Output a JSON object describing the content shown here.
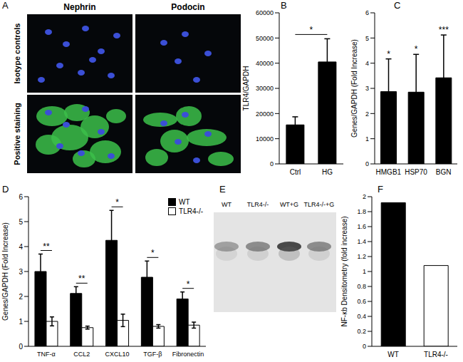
{
  "chart_data": [
    {
      "panel": "B",
      "type": "bar",
      "categories": [
        "Ctrl",
        "HG"
      ],
      "values": [
        15500,
        40500
      ],
      "errors": [
        3200,
        9200
      ],
      "color": "#000000",
      "ylabel": "TLR4/GAPDH",
      "ylim": [
        0,
        60000
      ],
      "yticks": [
        0,
        10000,
        20000,
        30000,
        40000,
        50000,
        60000
      ],
      "significance": [
        {
          "from": "Ctrl",
          "to": "HG",
          "label": "*"
        }
      ]
    },
    {
      "panel": "C",
      "type": "bar",
      "categories": [
        "HMGB1",
        "HSP70",
        "BGN"
      ],
      "values": [
        2.87,
        2.85,
        3.42
      ],
      "errors": [
        1.3,
        1.5,
        1.7
      ],
      "color": "#000000",
      "ylabel": "Genes/GAPDH (Fold Increase)",
      "ylim": [
        0,
        6
      ],
      "yticks": [
        0,
        1,
        2,
        3,
        4,
        5,
        6
      ],
      "significance": [
        "*",
        "*",
        "***"
      ]
    },
    {
      "panel": "D",
      "type": "bar",
      "categories": [
        "TNF-α",
        "CCL2",
        "CXCL10",
        "TGF-β",
        "Fibronectin"
      ],
      "series": [
        {
          "name": "WT",
          "color": "#000000",
          "values": [
            3.0,
            2.12,
            4.25,
            2.77,
            1.9
          ],
          "errors": [
            0.7,
            0.27,
            1.2,
            0.65,
            0.28
          ]
        },
        {
          "name": "TLR4-/-",
          "color": "#ffffff",
          "values": [
            1.0,
            0.75,
            1.04,
            0.8,
            0.85
          ],
          "errors": [
            0.18,
            0.06,
            0.25,
            0.07,
            0.12
          ]
        }
      ],
      "ylabel": "Genes/GAPDH (Fold Increase)",
      "ylim": [
        0,
        6
      ],
      "yticks": [
        0,
        1,
        2,
        3,
        4,
        5,
        6
      ],
      "legend": "upper right",
      "significance": [
        "**",
        "**",
        "*",
        "*",
        "*"
      ]
    },
    {
      "panel": "F",
      "type": "bar",
      "categories": [
        "WT",
        "TLR4-/-"
      ],
      "values": [
        1.92,
        1.08
      ],
      "colors": [
        "#000000",
        "#ffffff"
      ],
      "ylabel": "NF-κb Densitometry (fold increase)",
      "ylim": [
        0,
        2
      ],
      "yticks": [
        0,
        0.2,
        0.4,
        0.6,
        0.8,
        1,
        1.2,
        1.4,
        1.6,
        1.8,
        2
      ]
    }
  ],
  "images": [
    {
      "panel": "A",
      "columns": [
        "Nephrin",
        "Podocin"
      ],
      "rows": [
        "Isotype controls",
        "Positive staining"
      ]
    },
    {
      "panel": "E",
      "lanes": [
        "WT",
        "TLR4-/-",
        "WT+G",
        "TLR4-/-+G"
      ]
    }
  ]
}
